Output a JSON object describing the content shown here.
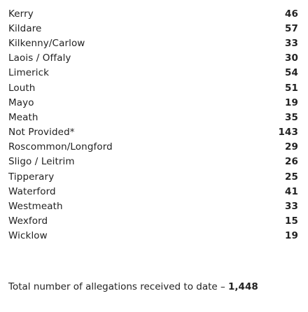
{
  "rows": [
    {
      "county": "Kerry",
      "value": "46"
    },
    {
      "county": "Kildare",
      "value": "57"
    },
    {
      "county": "Kilkenny/Carlow",
      "value": "33"
    },
    {
      "county": "Laois / Offaly",
      "value": "30"
    },
    {
      "county": "Limerick",
      "value": "54"
    },
    {
      "county": "Louth",
      "value": "51"
    },
    {
      "county": "Mayo",
      "value": "19"
    },
    {
      "county": "Meath",
      "value": "35"
    },
    {
      "county": "Not Provided*",
      "value": "143"
    },
    {
      "county": "Roscommon/Longford",
      "value": "29"
    },
    {
      "county": "Sligo / Leitrim",
      "value": "26"
    },
    {
      "county": "Tipperary",
      "value": "25"
    },
    {
      "county": "Waterford",
      "value": "41"
    },
    {
      "county": "Westmeath",
      "value": "33"
    },
    {
      "county": "Wexford",
      "value": "15"
    },
    {
      "county": "Wicklow",
      "value": "19"
    }
  ],
  "total": {
    "label": "Total number of allegations received to date – ",
    "number": "1,448"
  }
}
